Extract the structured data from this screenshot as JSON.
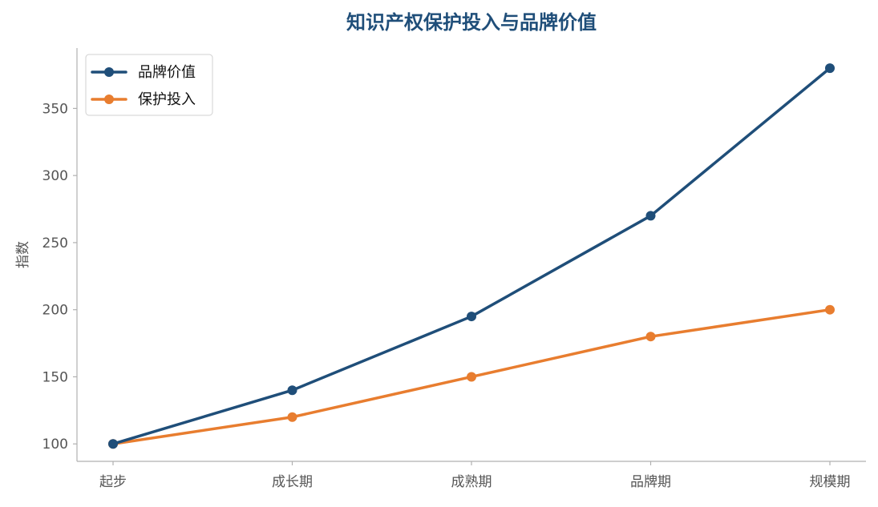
{
  "chart_data": {
    "type": "line",
    "title": "知识产权保护投入与品牌价值",
    "xlabel": "",
    "ylabel": "指数",
    "categories": [
      "起步",
      "成长期",
      "成熟期",
      "品牌期",
      "规模期"
    ],
    "series": [
      {
        "name": "品牌价值",
        "values": [
          100,
          140,
          195,
          270,
          380
        ],
        "color": "#1f4e79"
      },
      {
        "name": "保护投入",
        "values": [
          100,
          120,
          150,
          180,
          200
        ],
        "color": "#e87d2f"
      }
    ],
    "ylim": [
      87,
      395
    ],
    "yticks": [
      100,
      150,
      200,
      250,
      300,
      350
    ],
    "grid": false,
    "legend_position": "top-left"
  },
  "style": {
    "title_color": "#1f4e79",
    "axis_color": "#b0b0b0"
  }
}
